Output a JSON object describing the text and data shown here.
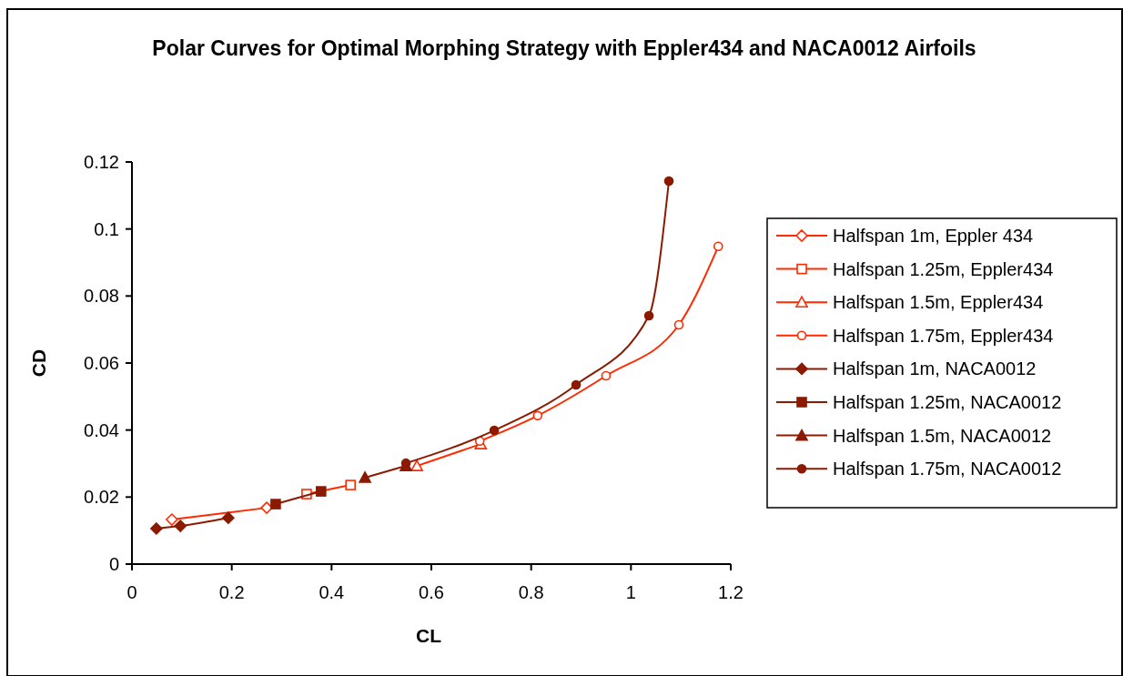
{
  "chart_data": {
    "type": "line",
    "title": "Polar Curves for Optimal Morphing Strategy with Eppler434 and NACA0012 Airfoils",
    "xlabel": "CL",
    "ylabel": "CD",
    "xlim": [
      0,
      1.2
    ],
    "xticks": [
      0,
      0.2,
      0.4,
      0.6,
      0.8,
      1,
      1.2
    ],
    "ylim": [
      0,
      0.12
    ],
    "yticks": [
      0,
      0.02,
      0.04,
      0.06,
      0.08,
      0.1,
      0.12
    ],
    "grid": false,
    "legend": "right",
    "line_style": "solid",
    "series": [
      {
        "name": "Halfspan 1m, Eppler 434",
        "color": "#ff2a00",
        "marker": "diamond",
        "x": [
          0.08,
          0.27
        ],
        "values": [
          0.0133,
          0.0168
        ]
      },
      {
        "name": "Halfspan 1.25m, Eppler434",
        "color": "#ff2a00",
        "marker": "square",
        "x": [
          0.35,
          0.438
        ],
        "values": [
          0.0209,
          0.0236
        ]
      },
      {
        "name": "Halfspan 1.5m, Eppler434",
        "color": "#ff2a00",
        "marker": "triangle",
        "x": [
          0.571,
          0.699
        ],
        "values": [
          0.0293,
          0.0358
        ]
      },
      {
        "name": "Halfspan 1.75m, Eppler434",
        "color": "#ff2a00",
        "marker": "circle",
        "x": [
          0.697,
          0.813,
          0.95,
          1.096,
          1.175
        ],
        "values": [
          0.0367,
          0.0443,
          0.0562,
          0.0714,
          0.0948
        ]
      },
      {
        "name": "Halfspan 1m, NACA0012",
        "color": "#8b1a00",
        "marker": "diamond",
        "x": [
          0.049,
          0.097,
          0.193
        ],
        "values": [
          0.0106,
          0.0114,
          0.0138
        ]
      },
      {
        "name": "Halfspan 1.25m, NACA0012",
        "color": "#8b1a00",
        "marker": "square",
        "x": [
          0.288,
          0.379
        ],
        "values": [
          0.0179,
          0.0217
        ]
      },
      {
        "name": "Halfspan 1.5m, NACA0012",
        "color": "#8b1a00",
        "marker": "triangle",
        "x": [
          0.467,
          0.549
        ],
        "values": [
          0.0258,
          0.0293
        ]
      },
      {
        "name": "Halfspan 1.75m, NACA0012",
        "color": "#8b1a00",
        "marker": "circle",
        "x": [
          0.549,
          0.726,
          0.89,
          1.036,
          1.076
        ],
        "values": [
          0.0301,
          0.0399,
          0.0535,
          0.0741,
          0.1143
        ]
      }
    ]
  }
}
